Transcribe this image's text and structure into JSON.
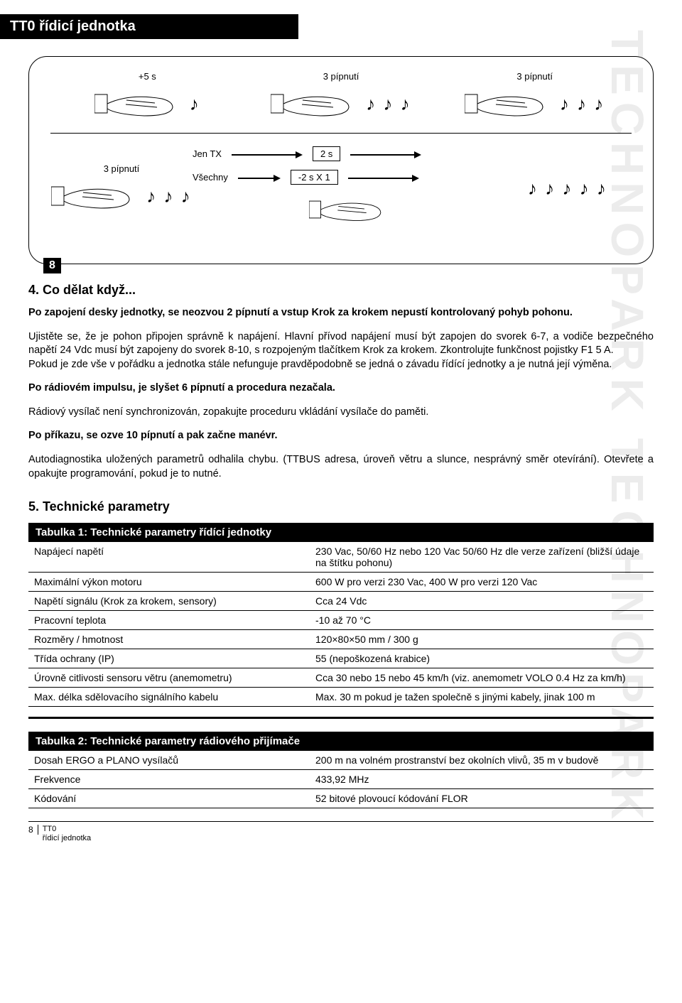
{
  "header": {
    "title": "TT0 řídicí jednotka"
  },
  "figure": {
    "row1": {
      "cell1_label": "+5 s",
      "cell2_label": "3 pípnutí",
      "cell3_label": "3 pípnutí"
    },
    "row2": {
      "cell1_label": "3 pípnutí",
      "mid_top_label": "Jen TX",
      "mid_top_box": "2 s",
      "mid_bot_label": "Všechny",
      "mid_bot_box": "-2 s X 1"
    },
    "step_badge": "8",
    "note_glyph": "♪",
    "notes1": 1,
    "notes3": 3,
    "notes5": 5
  },
  "sections": {
    "s4_title": "4. Co dělat když...",
    "s4_p1_bold": "Po zapojení desky jednotky, se neozvou 2 pípnutí a vstup Krok za krokem nepustí kontrolovaný pohyb pohonu.",
    "s4_p2": "Ujistěte se, že je pohon připojen správně k napájení. Hlavní přívod napájení musí být zapojen do svorek 6-7, a vodiče bezpečného napětí 24 Vdc musí být zapojeny do svorek 8-10, s rozpojeným tlačítkem Krok za krokem. Zkontrolujte funkčnost pojistky F1 5 A.\nPokud je zde vše v pořádku a jednotka stále nefunguje pravděpodobně se jedná o závadu řídící jednotky a je nutná její výměna.",
    "s4_p3_bold": "Po rádiovém impulsu, je slyšet 6 pípnutí a procedura nezačala.",
    "s4_p4": "Rádiový vysílač není synchronizován, zopakujte proceduru vkládání vysílače do paměti.",
    "s4_p5_bold": "Po příkazu, se ozve 10 pípnutí a pak začne manévr.",
    "s4_p6": "Autodiagnostika uložených parametrů odhalila chybu. (TTBUS adresa, úroveň větru a slunce, nesprávný směr otevírání). Otevřete a opakujte programování, pokud je to nutné.",
    "s5_title": "5. Technické parametry"
  },
  "table1": {
    "title": "Tabulka 1: Technické parametry řídící jednotky",
    "rows": [
      [
        "Napájecí napětí",
        "230 Vac, 50/60 Hz nebo 120 Vac 50/60 Hz dle verze zařízení (bližší údaje na štítku pohonu)"
      ],
      [
        "Maximální výkon motoru",
        "600 W pro verzi 230 Vac, 400 W pro verzi 120 Vac"
      ],
      [
        "Napětí signálu (Krok za krokem, sensory)",
        "Cca 24 Vdc"
      ],
      [
        "Pracovní teplota",
        "-10 až 70 °C"
      ],
      [
        "Rozměry / hmotnost",
        "120×80×50 mm / 300 g"
      ],
      [
        "Třída ochrany (IP)",
        "55 (nepoškozená krabice)"
      ],
      [
        "Úrovně citlivosti sensoru větru (anemometru)",
        "Cca 30 nebo 15 nebo 45 km/h (viz. anemometr VOLO 0.4 Hz za km/h)"
      ],
      [
        "Max. délka sdělovacího signálního  kabelu",
        "Max. 30 m pokud je tažen společně s jinými kabely, jinak 100 m"
      ]
    ]
  },
  "table2": {
    "title": "Tabulka 2: Technické parametry rádiového přijímače",
    "rows": [
      [
        "Dosah ERGO a PLANO vysílačů",
        "200 m na volném prostranství bez okolních vlivů, 35 m v budově"
      ],
      [
        "Frekvence",
        "433,92 MHz"
      ],
      [
        "Kódování",
        "52 bitové plovoucí kódování FLOR"
      ]
    ]
  },
  "footer": {
    "page_num": "8",
    "line1": "TT0",
    "line2": "řídicí jednotka"
  },
  "watermark": "TECHNOPARK  TECHNOPARK"
}
